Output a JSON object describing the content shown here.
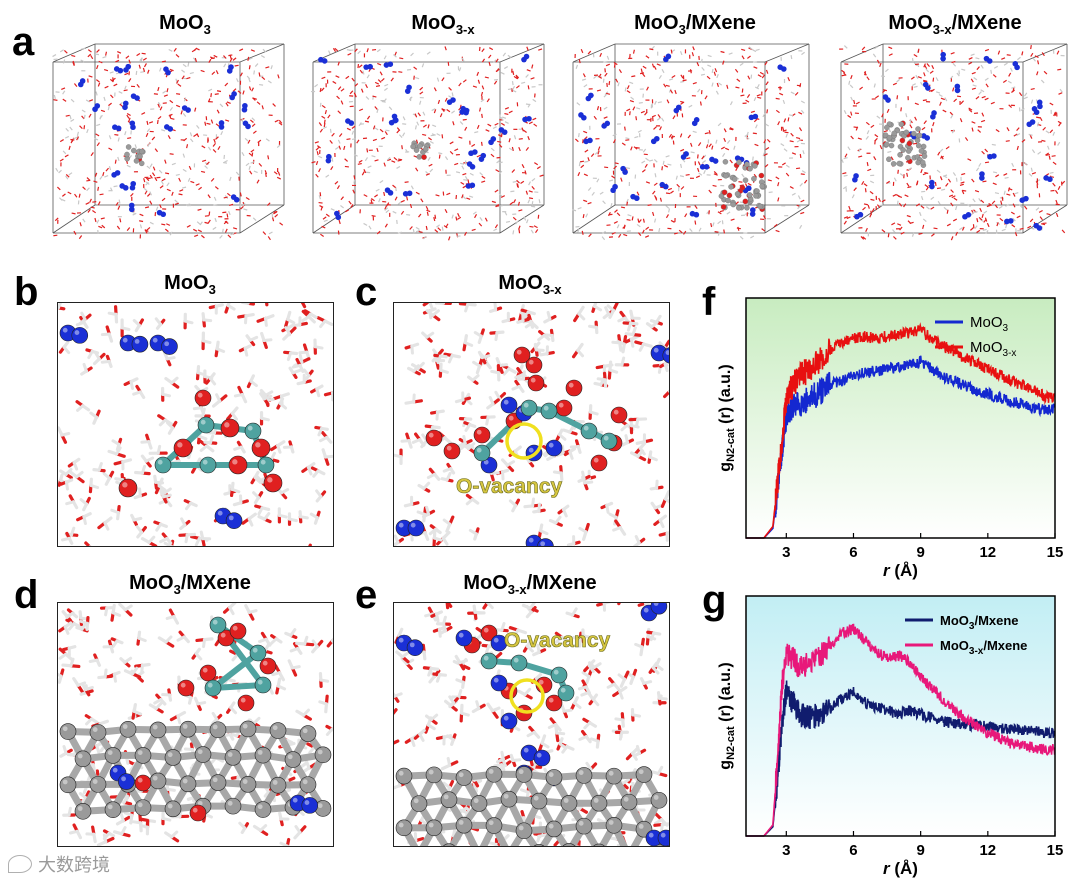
{
  "panels": {
    "a": {
      "letter": "a",
      "boxes": [
        {
          "title": "MoO",
          "sub": "3",
          "suffix": ""
        },
        {
          "title": "MoO",
          "sub": "3-x",
          "suffix": ""
        },
        {
          "title": "MoO",
          "sub": "3",
          "suffix": "/MXene"
        },
        {
          "title": "MoO",
          "sub": "3-x",
          "suffix": "/MXene"
        }
      ]
    },
    "b": {
      "letter": "b",
      "title": "MoO",
      "sub": "3",
      "suffix": ""
    },
    "c": {
      "letter": "c",
      "title": "MoO",
      "sub": "3-x",
      "suffix": "",
      "annotation": "O-vacancy"
    },
    "d": {
      "letter": "d",
      "title": "MoO",
      "sub": "3",
      "suffix": "/MXene"
    },
    "e": {
      "letter": "e",
      "title": "MoO",
      "sub": "3-x",
      "suffix": "/MXene",
      "annotation": "O-vacancy"
    },
    "f": {
      "letter": "f"
    },
    "g": {
      "letter": "g"
    }
  },
  "colors": {
    "water_oxygen": "#e02020",
    "nitrogen": "#1a2fd6",
    "molybdenum": "#4fa3a0",
    "mxene": "#9a9a9a",
    "vacancy_ring": "#f0e020",
    "annotation_text": "#d6c640",
    "f_bg_top": "#c8ecc0",
    "f_bg_bottom": "#ffffff",
    "g_bg_top": "#c2eef4",
    "g_bg_bottom": "#ffffff"
  },
  "chart_data": [
    {
      "type": "line",
      "panel": "f",
      "xlabel": "r (Å)",
      "ylabel": "g",
      "ylabel_sub": "N2-cat",
      "ylabel_suffix": " (r)   (a.u.)",
      "xlim": [
        1.2,
        15
      ],
      "ylim": [
        0,
        1.25
      ],
      "xticks": [
        3,
        6,
        9,
        12,
        15
      ],
      "legend": "top-right",
      "series": [
        {
          "name": "MoO",
          "name_sub": "3",
          "color": "#1428d0",
          "x": [
            1.2,
            2.0,
            2.4,
            2.6,
            2.8,
            3.0,
            3.3,
            3.6,
            4.0,
            4.5,
            5.0,
            5.5,
            6.0,
            6.5,
            7.0,
            7.5,
            8.0,
            8.5,
            9.0,
            9.5,
            10.0,
            10.5,
            11.0,
            11.5,
            12.0,
            12.5,
            13.0,
            13.5,
            14.0,
            14.5,
            15.0
          ],
          "y": [
            0.0,
            0.0,
            0.05,
            0.25,
            0.45,
            0.62,
            0.68,
            0.7,
            0.72,
            0.76,
            0.8,
            0.82,
            0.85,
            0.86,
            0.87,
            0.88,
            0.89,
            0.9,
            0.92,
            0.88,
            0.84,
            0.82,
            0.79,
            0.77,
            0.75,
            0.73,
            0.71,
            0.7,
            0.68,
            0.67,
            0.67
          ]
        },
        {
          "name": "MoO",
          "name_sub": "3-x",
          "color": "#e81010",
          "x": [
            1.2,
            2.0,
            2.4,
            2.6,
            2.8,
            3.0,
            3.3,
            3.6,
            4.0,
            4.5,
            5.0,
            5.5,
            6.0,
            6.5,
            7.0,
            7.5,
            8.0,
            8.5,
            9.0,
            9.5,
            10.0,
            10.5,
            11.0,
            11.5,
            12.0,
            12.5,
            13.0,
            13.5,
            14.0,
            14.5,
            15.0
          ],
          "y": [
            0.0,
            0.0,
            0.06,
            0.28,
            0.5,
            0.72,
            0.8,
            0.84,
            0.88,
            0.92,
            0.98,
            1.02,
            1.04,
            1.05,
            1.04,
            1.05,
            1.06,
            1.07,
            1.08,
            1.04,
            1.0,
            0.97,
            0.94,
            0.91,
            0.88,
            0.85,
            0.82,
            0.8,
            0.77,
            0.74,
            0.72
          ]
        }
      ]
    },
    {
      "type": "line",
      "panel": "g",
      "xlabel": "r (Å)",
      "ylabel": "g",
      "ylabel_sub": "N2-cat",
      "ylabel_suffix": " (r)   (a.u.)",
      "xlim": [
        1.2,
        15
      ],
      "ylim": [
        0,
        1.3
      ],
      "xticks": [
        3,
        6,
        9,
        12,
        15
      ],
      "legend": "top-right",
      "series": [
        {
          "name": "MoO",
          "name_sub": "3",
          "name_suffix": "/Mxene",
          "color": "#101c6e",
          "x": [
            1.2,
            2.0,
            2.4,
            2.6,
            2.8,
            3.0,
            3.3,
            3.6,
            4.0,
            4.5,
            5.0,
            5.5,
            6.0,
            6.5,
            7.0,
            7.5,
            8.0,
            8.5,
            9.0,
            9.5,
            10.0,
            10.5,
            11.0,
            11.5,
            12.0,
            12.5,
            13.0,
            13.5,
            14.0,
            14.5,
            15.0
          ],
          "y": [
            0.0,
            0.0,
            0.05,
            0.3,
            0.6,
            0.78,
            0.72,
            0.66,
            0.64,
            0.66,
            0.7,
            0.74,
            0.78,
            0.72,
            0.7,
            0.68,
            0.66,
            0.68,
            0.66,
            0.64,
            0.62,
            0.61,
            0.6,
            0.6,
            0.59,
            0.58,
            0.58,
            0.57,
            0.57,
            0.56,
            0.56
          ]
        },
        {
          "name": "MoO",
          "name_sub": "3-x",
          "name_suffix": "/Mxene",
          "color": "#e8187a",
          "x": [
            1.2,
            2.0,
            2.4,
            2.6,
            2.8,
            3.0,
            3.3,
            3.6,
            4.0,
            4.5,
            5.0,
            5.5,
            6.0,
            6.5,
            7.0,
            7.5,
            8.0,
            8.5,
            9.0,
            9.5,
            10.0,
            10.5,
            11.0,
            11.5,
            12.0,
            12.5,
            13.0,
            13.5,
            14.0,
            14.5,
            15.0
          ],
          "y": [
            0.0,
            0.0,
            0.06,
            0.4,
            0.8,
            1.0,
            0.96,
            0.92,
            0.94,
            0.98,
            1.04,
            1.1,
            1.12,
            1.06,
            1.0,
            0.96,
            0.98,
            0.94,
            0.86,
            0.8,
            0.74,
            0.68,
            0.64,
            0.6,
            0.56,
            0.53,
            0.5,
            0.49,
            0.48,
            0.47,
            0.47
          ]
        }
      ]
    }
  ],
  "watermark": {
    "text": "大数跨境"
  }
}
